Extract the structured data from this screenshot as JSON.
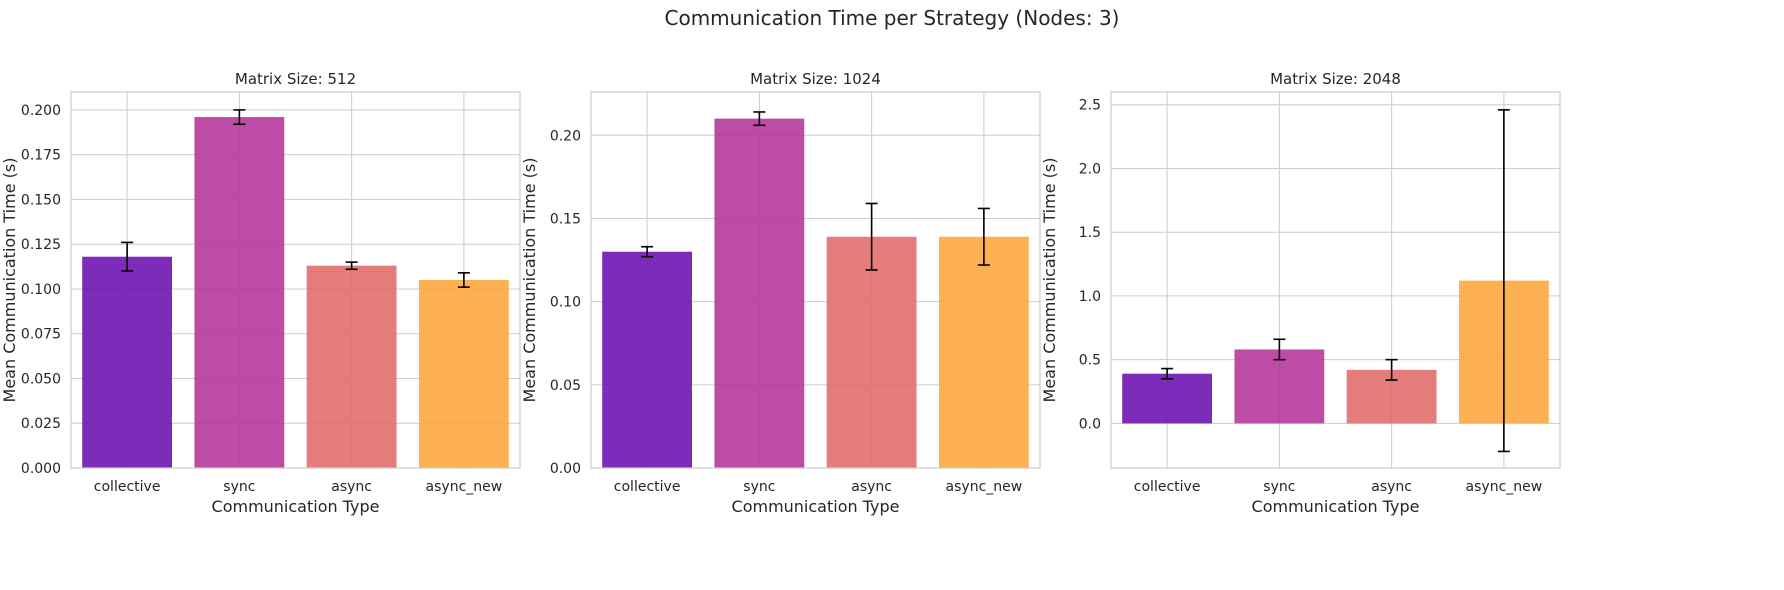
{
  "figure": {
    "suptitle": "Communication Time per Strategy (Nodes: 3)"
  },
  "chart_data": [
    {
      "type": "bar",
      "title": "Matrix Size: 512",
      "xlabel": "Communication Type",
      "ylabel": "Mean Communication Time (s)",
      "categories": [
        "collective",
        "sync",
        "async",
        "async_new"
      ],
      "values": [
        0.118,
        0.196,
        0.113,
        0.105
      ],
      "errors": [
        0.008,
        0.004,
        0.002,
        0.004
      ],
      "ylim": [
        0,
        0.21
      ],
      "yticks": [
        0.0,
        0.025,
        0.05,
        0.075,
        0.1,
        0.125,
        0.15,
        0.175,
        0.2
      ],
      "tick_decimals": 3,
      "colors": [
        "#6b0fb0",
        "#b4339a",
        "#e06a6a",
        "#fda63a"
      ],
      "grid": true
    },
    {
      "type": "bar",
      "title": "Matrix Size: 1024",
      "xlabel": "Communication Type",
      "ylabel": "Mean Communication Time (s)",
      "categories": [
        "collective",
        "sync",
        "async",
        "async_new"
      ],
      "values": [
        0.13,
        0.21,
        0.139,
        0.139
      ],
      "errors": [
        0.003,
        0.004,
        0.02,
        0.017
      ],
      "ylim": [
        0,
        0.226
      ],
      "yticks": [
        0.0,
        0.05,
        0.1,
        0.15,
        0.2
      ],
      "tick_decimals": 2,
      "colors": [
        "#6b0fb0",
        "#b4339a",
        "#e06a6a",
        "#fda63a"
      ],
      "grid": true
    },
    {
      "type": "bar",
      "title": "Matrix Size: 2048",
      "xlabel": "Communication Type",
      "ylabel": "Mean Communication Time (s)",
      "categories": [
        "collective",
        "sync",
        "async",
        "async_new"
      ],
      "values": [
        0.39,
        0.58,
        0.42,
        1.12
      ],
      "errors": [
        0.04,
        0.08,
        0.08,
        1.34
      ],
      "ylim": [
        -0.35,
        2.6
      ],
      "yticks": [
        0.0,
        0.5,
        1.0,
        1.5,
        2.0,
        2.5
      ],
      "tick_decimals": 1,
      "colors": [
        "#6b0fb0",
        "#b4339a",
        "#e06a6a",
        "#fda63a"
      ],
      "grid": true
    }
  ]
}
